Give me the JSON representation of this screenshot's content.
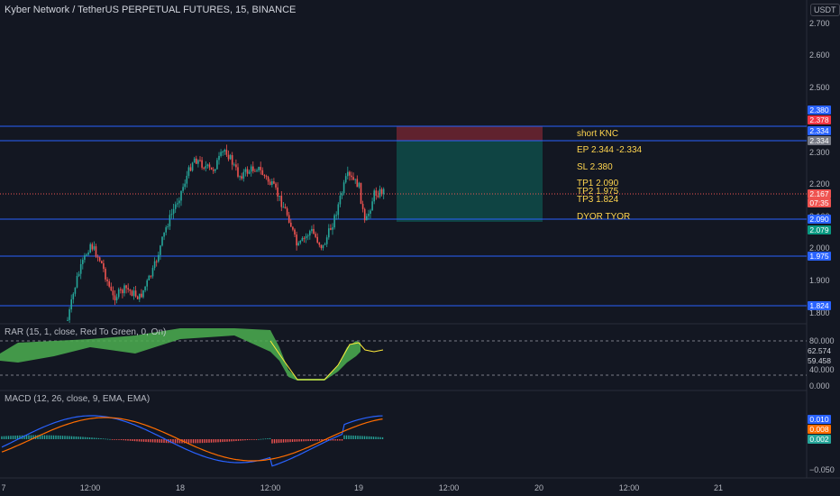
{
  "header": {
    "symbol_title": "Kyber Network / TetherUS PERPETUAL FUTURES, 15, BINANCE",
    "currency": "USDT"
  },
  "price_axis": {
    "ticks": [
      "2.700",
      "2.600",
      "2.500",
      "2.300",
      "2.200",
      "2.100",
      "2.000",
      "1.900",
      "1.800"
    ]
  },
  "price_tags": {
    "level_2380": "2.380",
    "level_2378": "2.378",
    "level_2334_a": "2.334",
    "level_2334_b": "2.334",
    "current_price": "2.167",
    "countdown": "07:35",
    "level_2090": "2.090",
    "level_2079": "2.079",
    "level_1975": "1.975",
    "level_1824": "1.824"
  },
  "annotations": {
    "short": "short KNC",
    "entry": "EP 2.344 -2.334",
    "stop_loss": "SL 2.380",
    "tp1": "TP1 2.090",
    "tp2": "TP2 1.975",
    "tp3": "TP3 1.824",
    "dyor": "DYOR TYOR"
  },
  "rar": {
    "label": "RAR (15, 1, close, Red To Green, 0, On)",
    "ticks": [
      "80.000",
      "40.000",
      "0.000"
    ],
    "tag_high": "62.574",
    "tag_low": "59.458"
  },
  "macd": {
    "label": "MACD (12, 26, close, 9, EMA, EMA)",
    "tick_bottom": "−0.050",
    "tag_macd": "0.010",
    "tag_signal": "0.008",
    "tag_hist": "0.002"
  },
  "time_axis": {
    "ticks": [
      "7",
      "12:00",
      "18",
      "12:00",
      "19",
      "12:00",
      "20",
      "12:00",
      "21"
    ]
  },
  "colors": {
    "background": "#131722",
    "up": "#26a69a",
    "down": "#ef5350",
    "level_line": "#2962ff",
    "annotation": "#ffd54f",
    "macd_line": "#2962ff",
    "signal_line": "#ff6d00"
  }
}
